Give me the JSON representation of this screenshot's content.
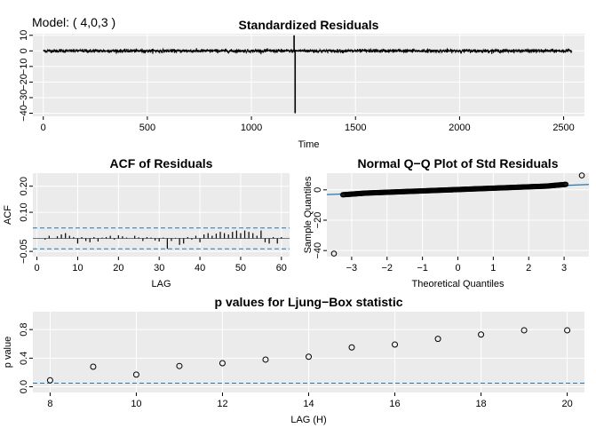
{
  "model_label": "Model: ( 4,0,3 )",
  "colors": {
    "panel_bg": "#ebebeb",
    "grid": "#ffffff",
    "dashed": "#1f77b4",
    "qqline": "#1f77b4",
    "line": "#000000"
  },
  "chart_data": [
    {
      "id": "resid",
      "type": "line",
      "title": "Standardized Residuals",
      "xlabel": "Time",
      "ylabel": "",
      "xlim": [
        -50,
        2600
      ],
      "ylim": [
        -42,
        11
      ],
      "xticks": [
        0,
        500,
        1000,
        1500,
        2000,
        2500
      ],
      "yticks": [
        -40,
        -30,
        -20,
        -10,
        0,
        10
      ],
      "n": 2540,
      "spikes": [
        {
          "x": 1210,
          "y": -40
        },
        {
          "x": 1205,
          "y": 10
        }
      ],
      "noise_scale": 0.9
    },
    {
      "id": "acf",
      "type": "bar",
      "title": "ACF of Residuals",
      "xlabel": "LAG",
      "ylabel": "ACF",
      "xlim": [
        -1,
        62
      ],
      "ylim": [
        -0.07,
        0.25
      ],
      "xticks": [
        0,
        10,
        20,
        30,
        40,
        50,
        60
      ],
      "yticks": [
        -0.05,
        0.1,
        0.2
      ],
      "bounds": [
        0.04,
        -0.04
      ],
      "lags": [
        1,
        2,
        3,
        4,
        5,
        6,
        7,
        8,
        9,
        10,
        11,
        12,
        13,
        14,
        15,
        16,
        17,
        18,
        19,
        20,
        21,
        22,
        23,
        24,
        25,
        26,
        27,
        28,
        29,
        30,
        31,
        32,
        33,
        34,
        35,
        36,
        37,
        38,
        39,
        40,
        41,
        42,
        43,
        44,
        45,
        46,
        47,
        48,
        49,
        50,
        51,
        52,
        53,
        54,
        55,
        56,
        57,
        58,
        59,
        60
      ],
      "values": [
        0.0,
        -0.005,
        0.01,
        0.0,
        0.008,
        0.015,
        0.02,
        0.01,
        0.005,
        -0.02,
        0.005,
        -0.01,
        -0.015,
        0.005,
        -0.012,
        0.003,
        0.005,
        0.01,
        -0.005,
        0.012,
        0.008,
        0.003,
        0.0,
        0.01,
        0.004,
        -0.01,
        0.005,
        0.003,
        -0.008,
        -0.012,
        0.003,
        -0.04,
        -0.01,
        0.002,
        -0.025,
        -0.02,
        0.005,
        -0.005,
        0.01,
        -0.015,
        0.015,
        0.02,
        0.01,
        0.018,
        0.025,
        0.02,
        0.015,
        0.025,
        0.03,
        0.02,
        0.03,
        0.025,
        0.02,
        0.01,
        0.03,
        -0.015,
        -0.02,
        0.005,
        -0.02,
        0.005
      ]
    },
    {
      "id": "qq",
      "type": "scatter",
      "title": "Normal Q−Q Plot of Std Residuals",
      "xlabel": "Theoretical Quantiles",
      "ylabel": "Sample Quantiles",
      "xlim": [
        -3.7,
        3.7
      ],
      "ylim": [
        -44,
        11
      ],
      "xticks": [
        -3,
        -2,
        -1,
        0,
        1,
        2,
        3
      ],
      "yticks": [
        -40,
        -20,
        0
      ],
      "line": {
        "intercept": 0.2,
        "slope": 0.9
      },
      "outliers": [
        {
          "x": -3.5,
          "y": -42
        },
        {
          "x": 3.5,
          "y": 9.5
        }
      ]
    },
    {
      "id": "ljung",
      "type": "scatter",
      "title": "p values for Ljung−Box statistic",
      "xlabel": "LAG (H)",
      "ylabel": "p value",
      "xlim": [
        7.6,
        20.4
      ],
      "ylim": [
        -0.08,
        1.05
      ],
      "xticks": [
        8,
        10,
        12,
        14,
        16,
        18,
        20
      ],
      "yticks": [
        0.0,
        0.4,
        0.8
      ],
      "threshold": 0.05,
      "x": [
        8,
        9,
        10,
        11,
        12,
        13,
        14,
        15,
        16,
        17,
        18,
        19,
        20
      ],
      "values": [
        0.09,
        0.28,
        0.17,
        0.29,
        0.33,
        0.38,
        0.42,
        0.55,
        0.59,
        0.67,
        0.73,
        0.79,
        0.79
      ]
    }
  ]
}
